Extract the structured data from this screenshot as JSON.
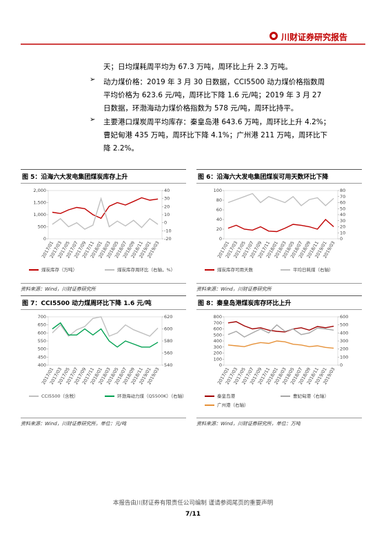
{
  "header": {
    "title": "川财证券研究报告"
  },
  "body": {
    "paragraphs": [
      "天；日均煤耗周平均为 67.3 万吨，周环比上升 2.3 万吨。",
      "动力煤价格：2019 年 3 月 30 日数据，CCI5500 动力煤价格指数周平均价格为 623.6 元/吨，周环比下降 1.6 元/吨；2019 年 3 月 27 日数据，环渤海动力煤价格指数为 578 元/吨，周环比持平。",
      "主要港口煤炭周平均库存：秦皇岛港 643.6 万吨，周环比上升 4.2%；曹妃甸港 435 万吨，周环比下降 4.1%；广州港 211 万吨，周环比下降 2.2%。"
    ]
  },
  "figures": [
    {
      "title": "图 5：沿海六大发电集团煤炭库存上升",
      "source": "资料来源：Wind，川财证券研究所",
      "chart_data": {
        "type": "line",
        "categories": [
          "2017/01",
          "2017/03",
          "2017/05",
          "2017/07",
          "2017/09",
          "2017/11",
          "2018/01",
          "2018/03",
          "2018/05",
          "2018/07",
          "2018/09",
          "2018/11",
          "2019/01",
          "2019/03"
        ],
        "series": [
          {
            "name": "煤炭库存（万吨）",
            "color": "#c00000",
            "values": [
              1100,
              1050,
              1200,
              1300,
              1250,
              1000,
              850,
              1350,
              1500,
              1400,
              1550,
              1700,
              1600,
              1650
            ]
          },
          {
            "name": "煤炭库存周环比（右轴，%）",
            "color": "#bfbfbf",
            "axis": "y2",
            "values": [
              -2,
              5,
              -5,
              0,
              -8,
              -3,
              30,
              -5,
              2,
              -4,
              3,
              -6,
              5,
              -2
            ]
          }
        ],
        "ylim": [
          0,
          2000
        ],
        "yticks": [
          0,
          500,
          {
            "value": 1000,
            "label": "1,000"
          },
          {
            "value": 1500,
            "label": "1,500"
          },
          {
            "value": 2000,
            "label": "2,000"
          }
        ],
        "y2lim": [
          -20,
          40
        ],
        "y2ticks": [
          -20,
          -10,
          0,
          10,
          20,
          30,
          40
        ]
      }
    },
    {
      "title": "图 6：沿海六大发电集团煤炭可用天数环比下降",
      "source": "资料来源：Wind，川财证券研究所",
      "chart_data": {
        "type": "line",
        "categories": [
          "2017/01",
          "2017/03",
          "2017/05",
          "2017/07",
          "2017/09",
          "2017/11",
          "2018/01",
          "2018/03",
          "2018/05",
          "2018/07",
          "2018/09",
          "2018/11",
          "2019/01",
          "2019/03"
        ],
        "series": [
          {
            "name": "煤炭库存可用天数",
            "color": "#c00000",
            "values": [
              22,
              28,
              20,
              18,
              25,
              16,
              15,
              22,
              30,
              28,
              25,
              20,
              40,
              25
            ]
          },
          {
            "name": "平均日耗煤（右轴）",
            "color": "#bfbfbf",
            "axis": "y2",
            "values": [
              60,
              65,
              70,
              75,
              60,
              70,
              65,
              60,
              70,
              55,
              65,
              68,
              55,
              67
            ]
          }
        ],
        "ylim": [
          0,
          100
        ],
        "yticks": [
          0,
          20,
          40,
          60,
          80,
          100
        ],
        "y2lim": [
          0,
          80
        ],
        "y2ticks": [
          0,
          10,
          20,
          30,
          40,
          50,
          60,
          70,
          80
        ]
      }
    },
    {
      "title": "图 7：CCI5500 动力煤周环比下降 1.6 元/吨",
      "source": "资料来源：Wind，川财证券研究所，单位：元/吨",
      "chart_data": {
        "type": "line",
        "categories": [
          "2017/01",
          "2017/03",
          "2017/05",
          "2017/07",
          "2017/09",
          "2017/11",
          "2018/01",
          "2018/03",
          "2018/05",
          "2018/07",
          "2018/09",
          "2018/11",
          "2019/01",
          "2019/03"
        ],
        "series": [
          {
            "name": "CCI5500（含税）",
            "color": "#bfbfbf",
            "values": [
              600,
              650,
              580,
              620,
              640,
              690,
              700,
              580,
              600,
              650,
              620,
              600,
              580,
              630
            ]
          },
          {
            "name": "环渤海动力煤（Q5500K）（右轴）",
            "color": "#00a050",
            "axis": "y2",
            "values": [
              600,
              610,
              590,
              590,
              600,
              590,
              600,
              580,
              570,
              580,
              575,
              570,
              570,
              578
            ]
          }
        ],
        "ylim": [
          400,
          700
        ],
        "yticks": [
          400,
          450,
          500,
          550,
          600,
          650,
          700
        ],
        "y2lim": [
          540,
          620
        ],
        "y2ticks": [
          540,
          560,
          580,
          600,
          620
        ]
      }
    },
    {
      "title": "图 8：秦皇岛港煤炭库存环比上升",
      "source": "资料来源：Wind，川财证券研究所，单位：万吨",
      "chart_data": {
        "type": "line",
        "categories": [
          "2017/01",
          "2017/03",
          "2017/05",
          "2017/07",
          "2017/09",
          "2017/11",
          "2018/01",
          "2018/03",
          "2018/05",
          "2018/07",
          "2018/09",
          "2018/11",
          "2019/01",
          "2019/03"
        ],
        "series": [
          {
            "name": "秦皇岛港",
            "color": "#a00000",
            "values": [
              700,
              720,
              650,
              600,
              620,
              580,
              560,
              550,
              600,
              620,
              580,
              640,
              620,
              644
            ]
          },
          {
            "name": "曹妃甸港（右轴）",
            "color": "#a6a6a6",
            "axis": "y2",
            "values": [
              380,
              420,
              350,
              400,
              450,
              400,
              500,
              420,
              450,
              380,
              400,
              460,
              450,
              435
            ]
          },
          {
            "name": "广州港（右轴）",
            "color": "#e69138",
            "axis": "y2",
            "values": [
              250,
              240,
              230,
              260,
              280,
              270,
              300,
              290,
              260,
              250,
              230,
              240,
              220,
              211
            ]
          }
        ],
        "ylim": [
          0,
          800
        ],
        "yticks": [
          0,
          100,
          200,
          300,
          400,
          500,
          600,
          700,
          800
        ],
        "y2lim": [
          0,
          600
        ],
        "y2ticks": [
          0,
          100,
          200,
          300,
          400,
          500,
          600
        ]
      }
    }
  ],
  "footer": {
    "disclaimer": "本报告由川财证券有限责任公司编制 谨请参阅尾页的重要声明",
    "page": "7/11"
  }
}
